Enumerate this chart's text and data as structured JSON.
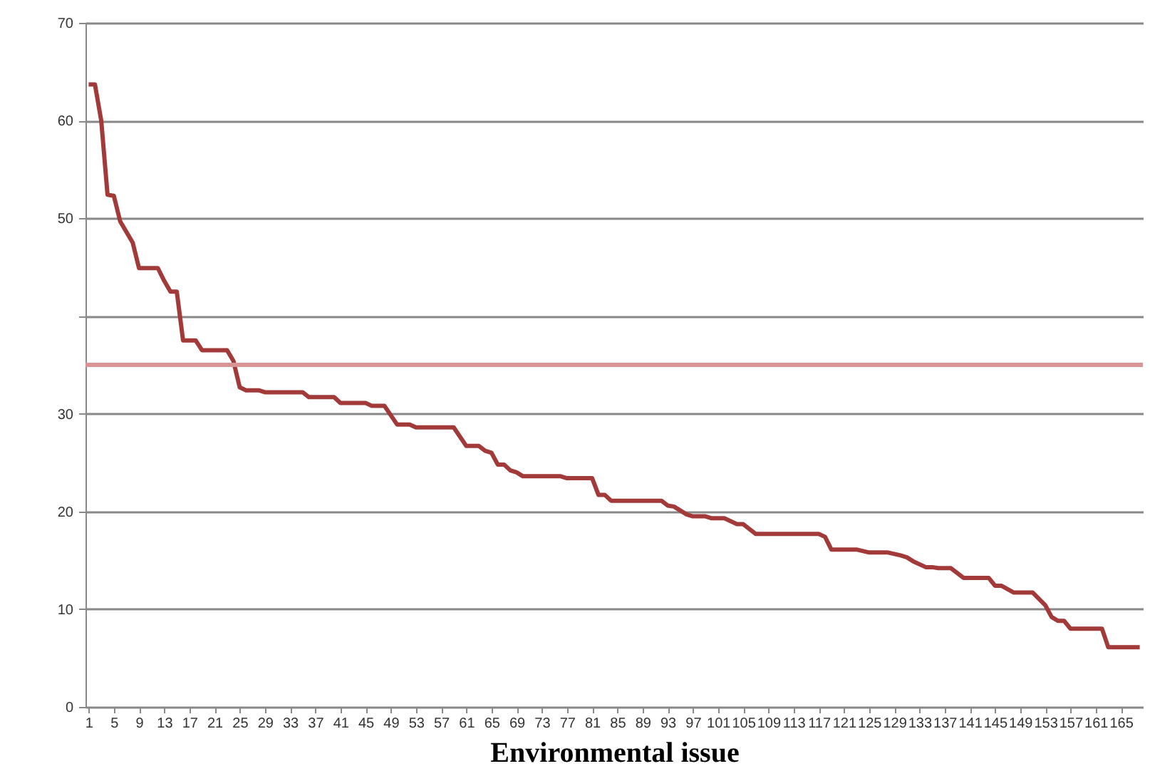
{
  "chart_data": {
    "type": "line",
    "xlabel": "Environmental issue",
    "x": [
      1,
      2,
      3,
      4,
      5,
      6,
      8,
      9,
      12,
      13,
      14,
      15,
      16,
      18,
      19,
      23,
      24,
      25,
      26,
      28,
      29,
      35,
      36,
      40,
      41,
      45,
      46,
      48,
      50,
      52,
      53,
      59,
      61,
      63,
      64,
      65,
      66,
      67,
      68,
      69,
      70,
      76,
      77,
      81,
      82,
      83,
      84,
      92,
      93,
      94,
      96,
      97,
      99,
      100,
      102,
      104,
      105,
      107,
      117,
      118,
      119,
      123,
      125,
      128,
      130,
      131,
      132,
      134,
      135,
      136,
      138,
      140,
      144,
      145,
      146,
      148,
      151,
      153,
      154,
      155,
      156,
      157,
      162,
      163,
      168
    ],
    "series": [
      {
        "color": "#a33a3a",
        "values": [
          63.7,
          63.7,
          60,
          52.4,
          52.3,
          49.7,
          47.5,
          44.9,
          44.9,
          43.6,
          42.5,
          42.5,
          37.5,
          37.5,
          36.5,
          36.5,
          35.4,
          32.7,
          32.4,
          32.4,
          32.2,
          32.2,
          31.7,
          31.7,
          31.1,
          31.1,
          30.8,
          30.8,
          28.9,
          28.9,
          28.6,
          28.6,
          26.7,
          26.7,
          26.2,
          26,
          24.8,
          24.8,
          24.2,
          24,
          23.6,
          23.6,
          23.4,
          23.4,
          21.7,
          21.7,
          21.1,
          21.1,
          20.6,
          20.5,
          19.7,
          19.5,
          19.5,
          19.3,
          19.3,
          18.7,
          18.7,
          17.7,
          17.7,
          17.4,
          16.1,
          16.1,
          15.8,
          15.8,
          15.5,
          15.3,
          14.9,
          14.3,
          14.3,
          14.2,
          14.2,
          13.2,
          13.2,
          12.4,
          12.4,
          11.7,
          11.7,
          10.4,
          9.2,
          8.8,
          8.8,
          8.0,
          8.0,
          6.1,
          6.1
        ]
      }
    ],
    "xlim": [
      0.5,
      168.5
    ],
    "xticks": [
      1,
      5,
      9,
      13,
      17,
      21,
      25,
      29,
      33,
      37,
      41,
      45,
      49,
      53,
      57,
      61,
      65,
      69,
      73,
      77,
      81,
      85,
      89,
      93,
      97,
      101,
      105,
      109,
      113,
      117,
      121,
      125,
      129,
      133,
      137,
      141,
      145,
      149,
      153,
      157,
      161,
      165
    ],
    "ylim": [
      0,
      70
    ],
    "yticks": [
      0,
      10,
      20,
      30,
      {
        "value": 40,
        "label": null
      },
      50,
      60,
      70
    ],
    "grid": "y",
    "ref_lines": [
      {
        "axis": "y",
        "value": 35,
        "color": "#d99594"
      }
    ],
    "line_style": "solid"
  }
}
